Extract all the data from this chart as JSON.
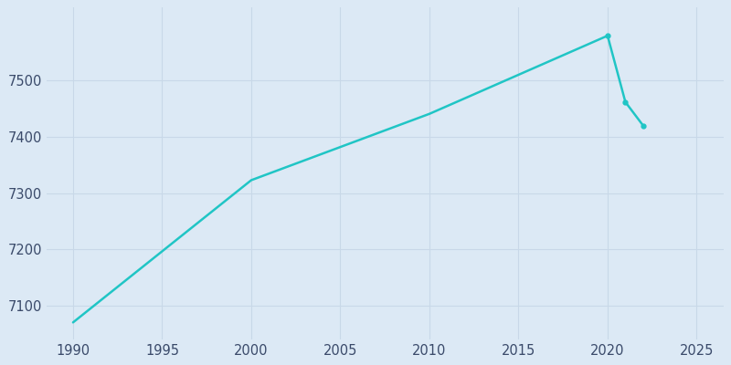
{
  "years": [
    1990,
    2000,
    2010,
    2020,
    2021,
    2022
  ],
  "population": [
    7070,
    7323,
    7441,
    7580,
    7462,
    7420
  ],
  "line_color": "#20C5C5",
  "marker_years": [
    2020,
    2021,
    2022
  ],
  "marker_populations": [
    7580,
    7462,
    7420
  ],
  "background_color": "#dce9f5",
  "figure_bg": "#ffffff",
  "xlim": [
    1988.5,
    2026.5
  ],
  "ylim": [
    7040,
    7630
  ],
  "xticks": [
    1990,
    1995,
    2000,
    2005,
    2010,
    2015,
    2020,
    2025
  ],
  "yticks": [
    7100,
    7200,
    7300,
    7400,
    7500
  ],
  "grid_color": "#c8d8e8",
  "tick_color": "#3a4a6a",
  "label_fontsize": 10.5,
  "line_width": 1.8,
  "marker_size": 3.5
}
